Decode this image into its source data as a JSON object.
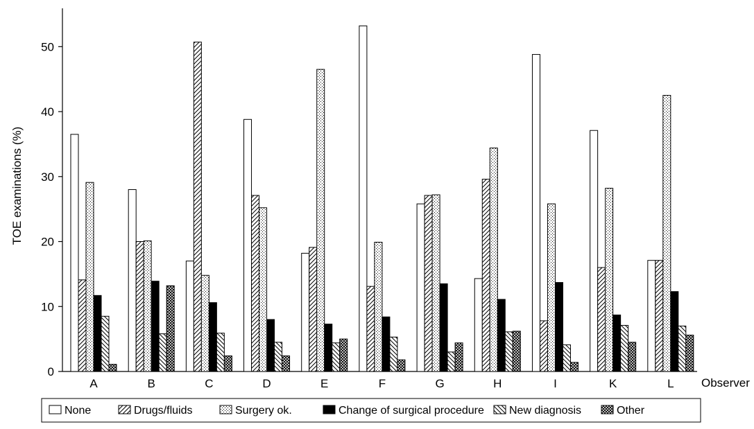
{
  "chart_data": {
    "type": "bar",
    "xlabel": "Observer",
    "ylabel": "TOE examinations (%)",
    "ylim": [
      0,
      55
    ],
    "yticks": [
      0,
      10,
      20,
      30,
      40,
      50
    ],
    "grid": false,
    "legend_position": "bottom",
    "categories": [
      "A",
      "B",
      "C",
      "D",
      "E",
      "F",
      "G",
      "H",
      "I",
      "K",
      "L"
    ],
    "series": [
      {
        "name": "None",
        "pattern": "none",
        "values": [
          36.5,
          28.0,
          17.0,
          38.8,
          18.2,
          53.2,
          25.8,
          14.3,
          48.8,
          37.1,
          17.1
        ]
      },
      {
        "name": "Drugs/fluids",
        "pattern": "diagonal-forward",
        "values": [
          14.1,
          20.0,
          50.7,
          27.1,
          19.1,
          13.1,
          27.1,
          29.6,
          7.8,
          16.0,
          17.1
        ]
      },
      {
        "name": "Surgery ok.",
        "pattern": "dots",
        "values": [
          29.1,
          20.1,
          14.8,
          25.2,
          46.5,
          19.9,
          27.2,
          34.4,
          25.8,
          28.2,
          42.5
        ]
      },
      {
        "name": "Change of surgical procedure",
        "pattern": "solid-black",
        "values": [
          11.7,
          13.9,
          10.6,
          8.0,
          7.3,
          8.4,
          13.5,
          11.1,
          13.7,
          8.7,
          12.3
        ]
      },
      {
        "name": "New diagnosis",
        "pattern": "diagonal-back",
        "values": [
          8.5,
          5.8,
          5.9,
          4.5,
          4.4,
          5.3,
          3.0,
          6.1,
          4.1,
          7.1,
          7.0
        ]
      },
      {
        "name": "Other",
        "pattern": "crosshatch",
        "values": [
          1.1,
          13.2,
          2.4,
          2.4,
          5.0,
          1.8,
          4.4,
          6.2,
          1.4,
          4.5,
          5.6
        ]
      }
    ]
  }
}
